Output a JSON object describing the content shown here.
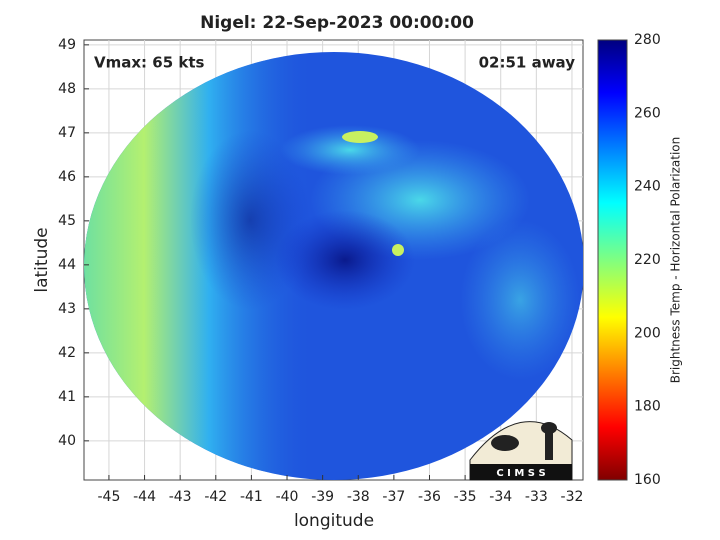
{
  "title": "Nigel: 22-Sep-2023 00:00:00",
  "annotations": {
    "vmax": "Vmax: 65 kts",
    "time_away": "02:51 away"
  },
  "x_axis": {
    "label": "longitude",
    "lim": [
      -45.7,
      -31.69
    ],
    "ticks": [
      -45,
      -44,
      -43,
      -42,
      -41,
      -40,
      -39,
      -38,
      -37,
      -36,
      -35,
      -34,
      -33,
      -32
    ]
  },
  "y_axis": {
    "label": "latitude",
    "lim": [
      39.11,
      49.11
    ],
    "ticks": [
      40,
      41,
      42,
      43,
      44,
      45,
      46,
      47,
      48,
      49
    ]
  },
  "colorbar": {
    "label": "Brightness Temp - Horizontal Polarization",
    "lim": [
      160,
      280
    ],
    "ticks": [
      160,
      180,
      200,
      220,
      240,
      260,
      280
    ]
  },
  "logo": "C I M S S"
}
